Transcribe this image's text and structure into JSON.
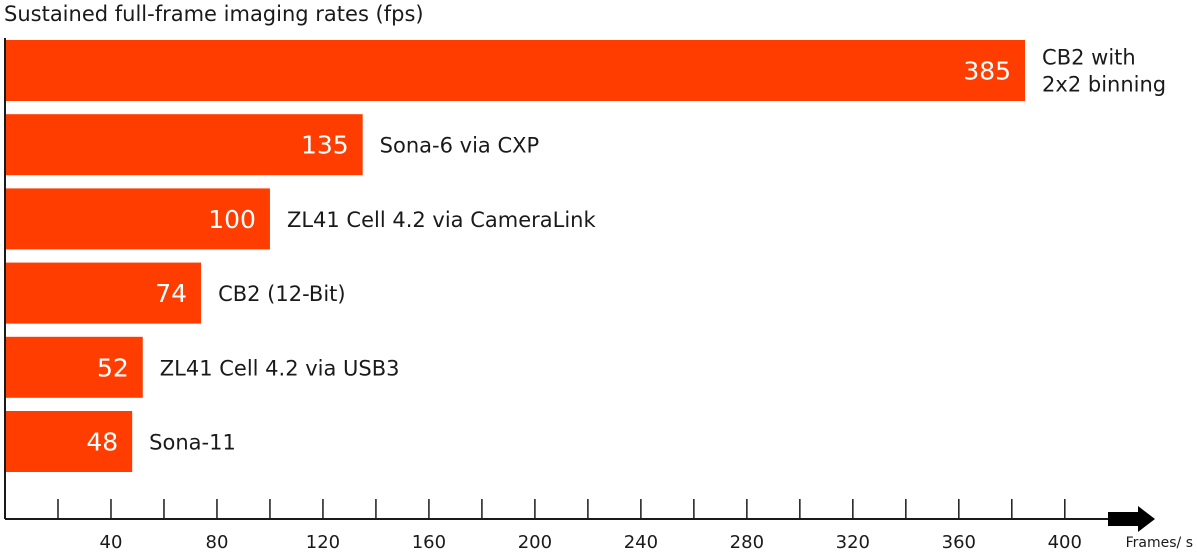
{
  "chart_data": {
    "type": "bar",
    "orientation": "horizontal",
    "title": "Sustained full-frame imaging rates (fps)",
    "xlabel": "Frames/ s",
    "ylabel": "",
    "xlim": [
      0,
      410
    ],
    "xticks": [
      40,
      80,
      120,
      160,
      200,
      240,
      280,
      320,
      360,
      400
    ],
    "grid": false,
    "bar_color": "#ff3d00",
    "categories": [
      [
        "CB2 with",
        "2x2 binning"
      ],
      [
        "Sona-6 via CXP"
      ],
      [
        "ZL41 Cell 4.2 via CameraLink"
      ],
      [
        "CB2 (12-Bit)"
      ],
      [
        "ZL41 Cell 4.2 via USB3"
      ],
      [
        "Sona-11"
      ]
    ],
    "values": [
      385,
      135,
      100,
      74,
      52,
      48
    ],
    "value_labels": [
      "385",
      "135",
      "100",
      "74",
      "52",
      "48"
    ]
  }
}
